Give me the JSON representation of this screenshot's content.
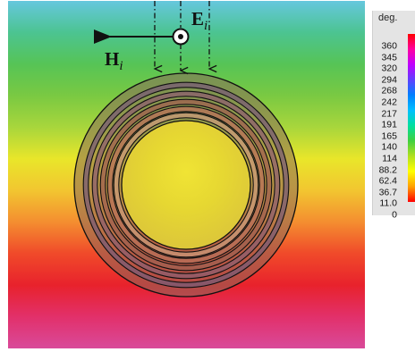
{
  "labels": {
    "e_field": "E",
    "e_sub": "i",
    "h_field": "H",
    "h_sub": "i"
  },
  "colorbar": {
    "unit": "deg.",
    "ticks": [
      "360",
      "345",
      "320",
      "294",
      "268",
      "242",
      "217",
      "191",
      "165",
      "140",
      "114",
      "88.2",
      "62.4",
      "36.7",
      "11.0",
      "0"
    ],
    "colors": [
      "#ff0000",
      "#ff00a0",
      "#c000ff",
      "#6040ff",
      "#0080ff",
      "#00c0ff",
      "#00e0a0",
      "#40d040",
      "#b0e020",
      "#ffff00",
      "#ffa000",
      "#ff0000"
    ]
  },
  "field_map": {
    "background_band_colors": [
      "#66c7de",
      "#4cc491",
      "#56c456",
      "#7ac942",
      "#a8d63c",
      "#e9e62a",
      "#f2c630",
      "#f48e30",
      "#f04a2a",
      "#e8222c",
      "#e2306a",
      "#d94a9a"
    ],
    "ring_colors": [
      "#7a5c75",
      "#8d5f6f",
      "#a06050",
      "#b8705a",
      "#c99a7a"
    ],
    "inner_disk_colors": [
      "#f0e434",
      "#e6d732",
      "#dcc63a"
    ]
  }
}
